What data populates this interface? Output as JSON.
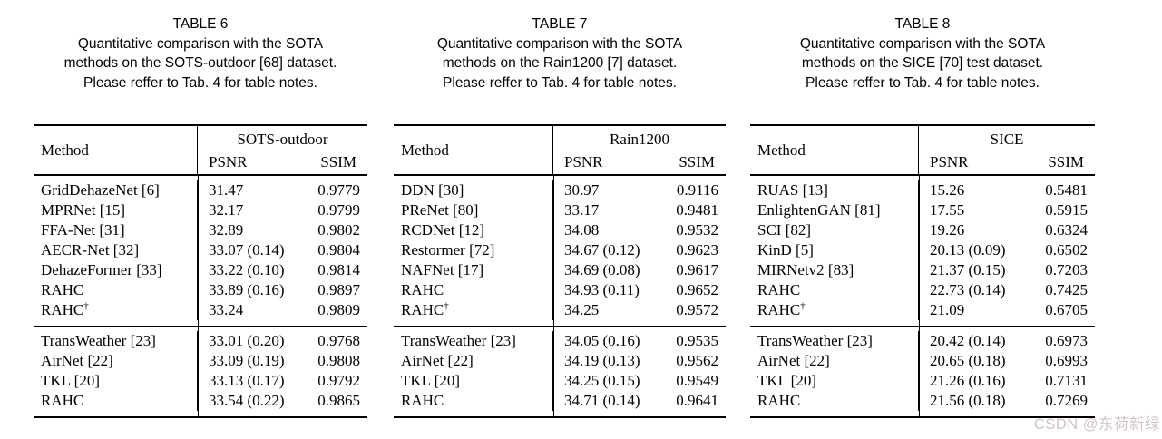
{
  "watermark": {
    "text": "CSDN @东荷新绿",
    "color": "#d0c4c9"
  },
  "tables": [
    {
      "title": "TABLE 6",
      "caption": [
        "Quantitative comparison with the SOTA",
        "methods on the SOTS-outdoor [68] dataset.",
        "Please reffer to Tab. 4 for table notes."
      ],
      "columns": {
        "method": "Method",
        "dataset": "SOTS-outdoor",
        "psnr": "PSNR",
        "ssim": "SSIM"
      },
      "groups": [
        [
          {
            "method": "GridDehazeNet [6]",
            "psnr": "31.47",
            "ssim": "0.9779"
          },
          {
            "method": "MPRNet [15]",
            "psnr": "32.17",
            "ssim": "0.9799"
          },
          {
            "method": "FFA-Net [31]",
            "psnr": "32.89",
            "ssim": "0.9802"
          },
          {
            "method": "AECR-Net [32]",
            "psnr": "33.07 (0.14)",
            "ssim": "0.9804"
          },
          {
            "method": "DehazeFormer [33]",
            "psnr": "33.22 (0.10)",
            "ssim": "0.9814"
          },
          {
            "method": "RAHC",
            "psnr": "33.89 (0.16)",
            "ssim": "0.9897"
          },
          {
            "method": "RAHC",
            "sup": "†",
            "psnr": "33.24",
            "ssim": "0.9809"
          }
        ],
        [
          {
            "method": "TransWeather [23]",
            "psnr": "33.01 (0.20)",
            "ssim": "0.9768"
          },
          {
            "method": "AirNet [22]",
            "psnr": "33.09 (0.19)",
            "ssim": "0.9808"
          },
          {
            "method": "TKL [20]",
            "psnr": "33.13 (0.17)",
            "ssim": "0.9792"
          },
          {
            "method": "RAHC",
            "psnr": "33.54 (0.22)",
            "ssim": "0.9865"
          }
        ]
      ]
    },
    {
      "title": "TABLE 7",
      "caption": [
        "Quantitative comparison with the SOTA",
        "methods on the Rain1200 [7] dataset.",
        "Please reffer to Tab. 4 for table notes."
      ],
      "columns": {
        "method": "Method",
        "dataset": "Rain1200",
        "psnr": "PSNR",
        "ssim": "SSIM"
      },
      "groups": [
        [
          {
            "method": "DDN [30]",
            "psnr": "30.97",
            "ssim": "0.9116"
          },
          {
            "method": "PReNet [80]",
            "psnr": "33.17",
            "ssim": "0.9481"
          },
          {
            "method": "RCDNet [12]",
            "psnr": "34.08",
            "ssim": "0.9532"
          },
          {
            "method": "Restormer [72]",
            "psnr": "34.67 (0.12)",
            "ssim": "0.9623"
          },
          {
            "method": "NAFNet [17]",
            "psnr": "34.69 (0.08)",
            "ssim": "0.9617"
          },
          {
            "method": "RAHC",
            "psnr": "34.93 (0.11)",
            "ssim": "0.9652"
          },
          {
            "method": "RAHC",
            "sup": "†",
            "psnr": "34.25",
            "ssim": "0.9572"
          }
        ],
        [
          {
            "method": "TransWeather [23]",
            "psnr": "34.05 (0.16)",
            "ssim": "0.9535"
          },
          {
            "method": "AirNet [22]",
            "psnr": "34.19 (0.13)",
            "ssim": "0.9562"
          },
          {
            "method": "TKL [20]",
            "psnr": "34.25 (0.15)",
            "ssim": "0.9549"
          },
          {
            "method": "RAHC",
            "psnr": "34.71 (0.14)",
            "ssim": "0.9641"
          }
        ]
      ]
    },
    {
      "title": "TABLE 8",
      "caption": [
        "Quantitative comparison with the SOTA",
        "methods on the SICE [70] test dataset.",
        "Please reffer to Tab. 4 for table notes."
      ],
      "columns": {
        "method": "Method",
        "dataset": "SICE",
        "psnr": "PSNR",
        "ssim": "SSIM"
      },
      "groups": [
        [
          {
            "method": "RUAS [13]",
            "psnr": "15.26",
            "ssim": "0.5481"
          },
          {
            "method": "EnlightenGAN [81]",
            "psnr": "17.55",
            "ssim": "0.5915"
          },
          {
            "method": "SCI [82]",
            "psnr": "19.26",
            "ssim": "0.6324"
          },
          {
            "method": "KinD [5]",
            "psnr": "20.13 (0.09)",
            "ssim": "0.6502"
          },
          {
            "method": "MIRNetv2 [83]",
            "psnr": "21.37 (0.15)",
            "ssim": "0.7203"
          },
          {
            "method": "RAHC",
            "psnr": "22.73 (0.14)",
            "ssim": "0.7425"
          },
          {
            "method": "RAHC",
            "sup": "†",
            "psnr": "21.09",
            "ssim": "0.6705"
          }
        ],
        [
          {
            "method": "TransWeather [23]",
            "psnr": "20.42 (0.14)",
            "ssim": "0.6973"
          },
          {
            "method": "AirNet [22]",
            "psnr": "20.65 (0.18)",
            "ssim": "0.6993"
          },
          {
            "method": "TKL [20]",
            "psnr": "21.26 (0.16)",
            "ssim": "0.7131"
          },
          {
            "method": "RAHC",
            "psnr": "21.56 (0.18)",
            "ssim": "0.7269"
          }
        ]
      ]
    }
  ]
}
